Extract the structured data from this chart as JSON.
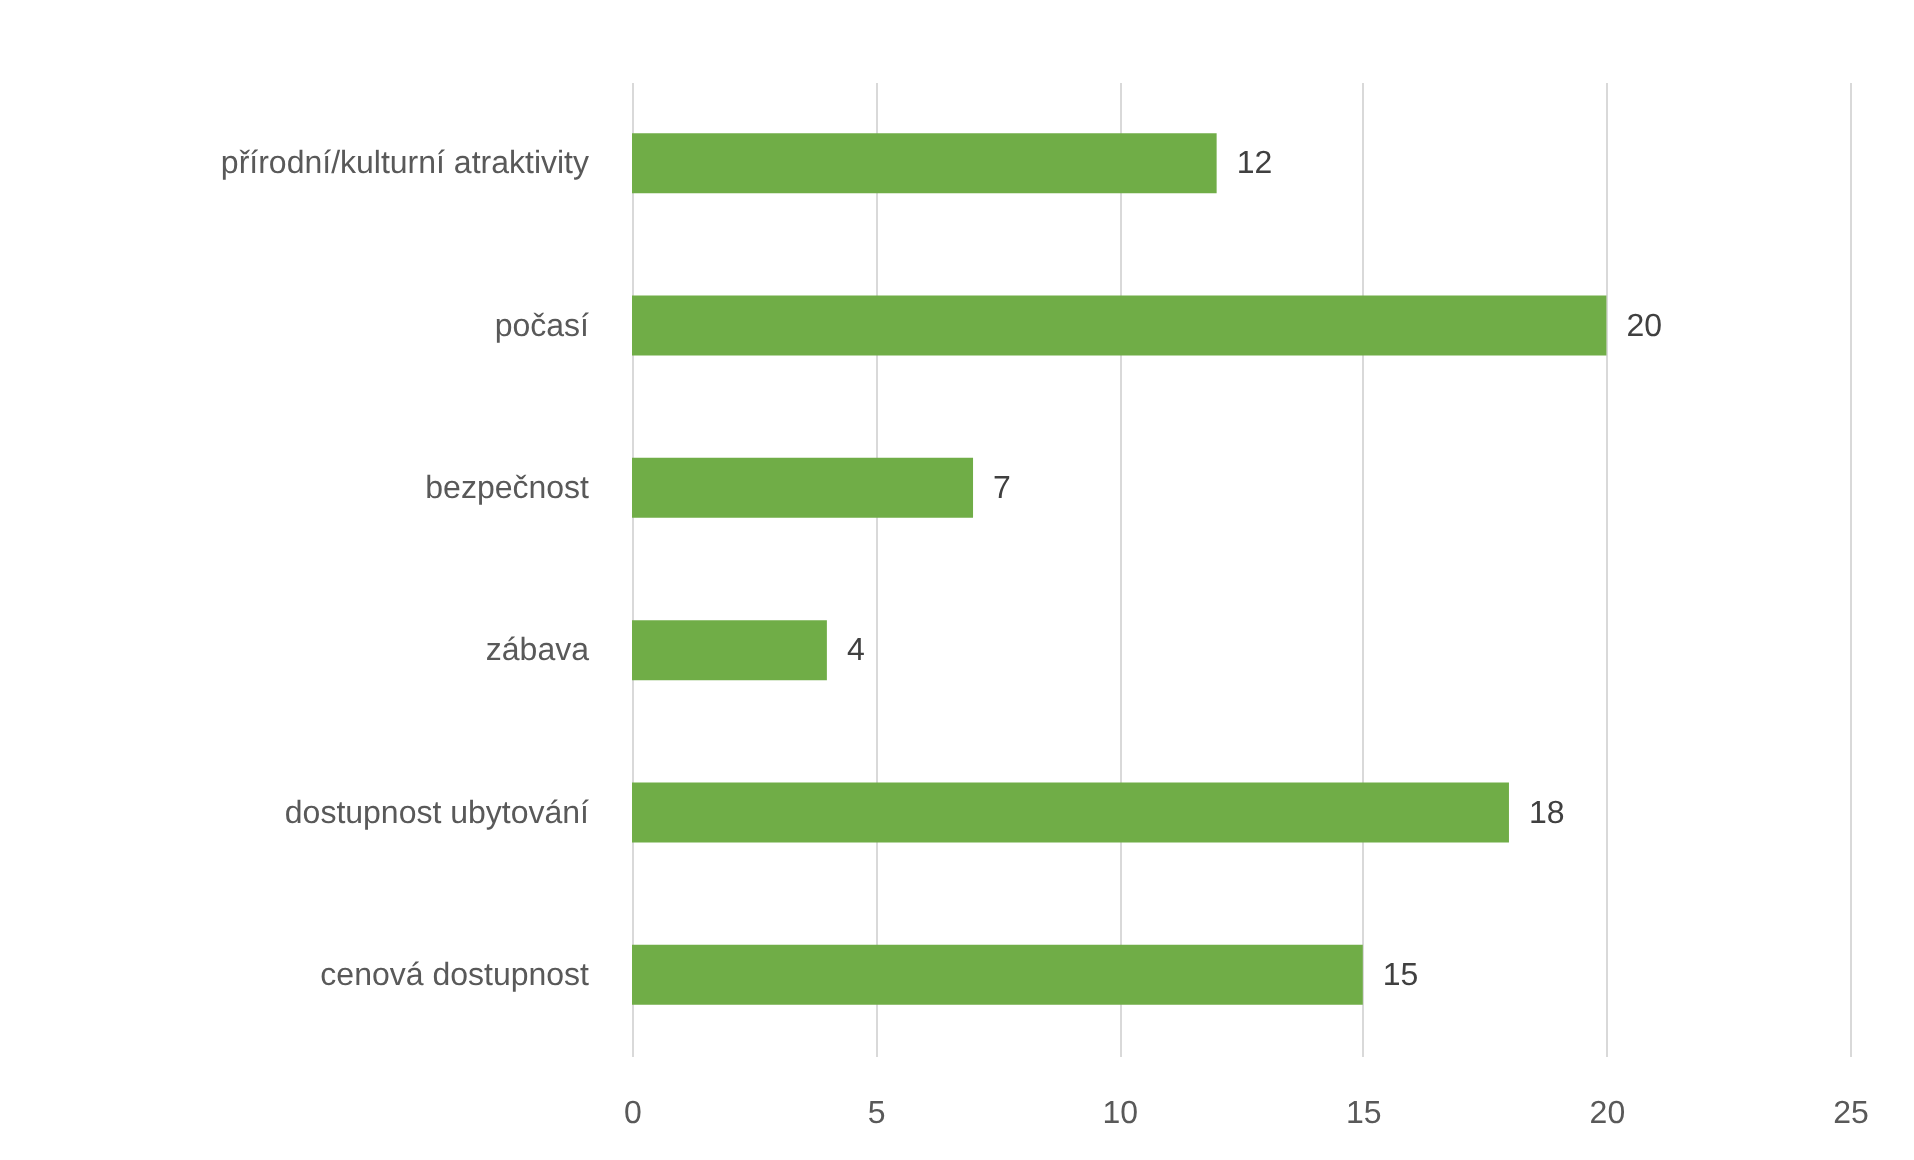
{
  "chart_data": {
    "type": "bar",
    "orientation": "horizontal",
    "categories": [
      "přírodní/kulturní atraktivity",
      "počasí",
      "bezpečnost",
      "zábava",
      "dostupnost ubytování",
      "cenová dostupnost"
    ],
    "values": [
      12,
      20,
      7,
      4,
      18,
      15
    ],
    "color": "#70ad47",
    "xlim": [
      0,
      25
    ],
    "xticks": [
      0,
      5,
      10,
      15,
      20,
      25
    ],
    "grid": "x",
    "data_labels": true
  }
}
